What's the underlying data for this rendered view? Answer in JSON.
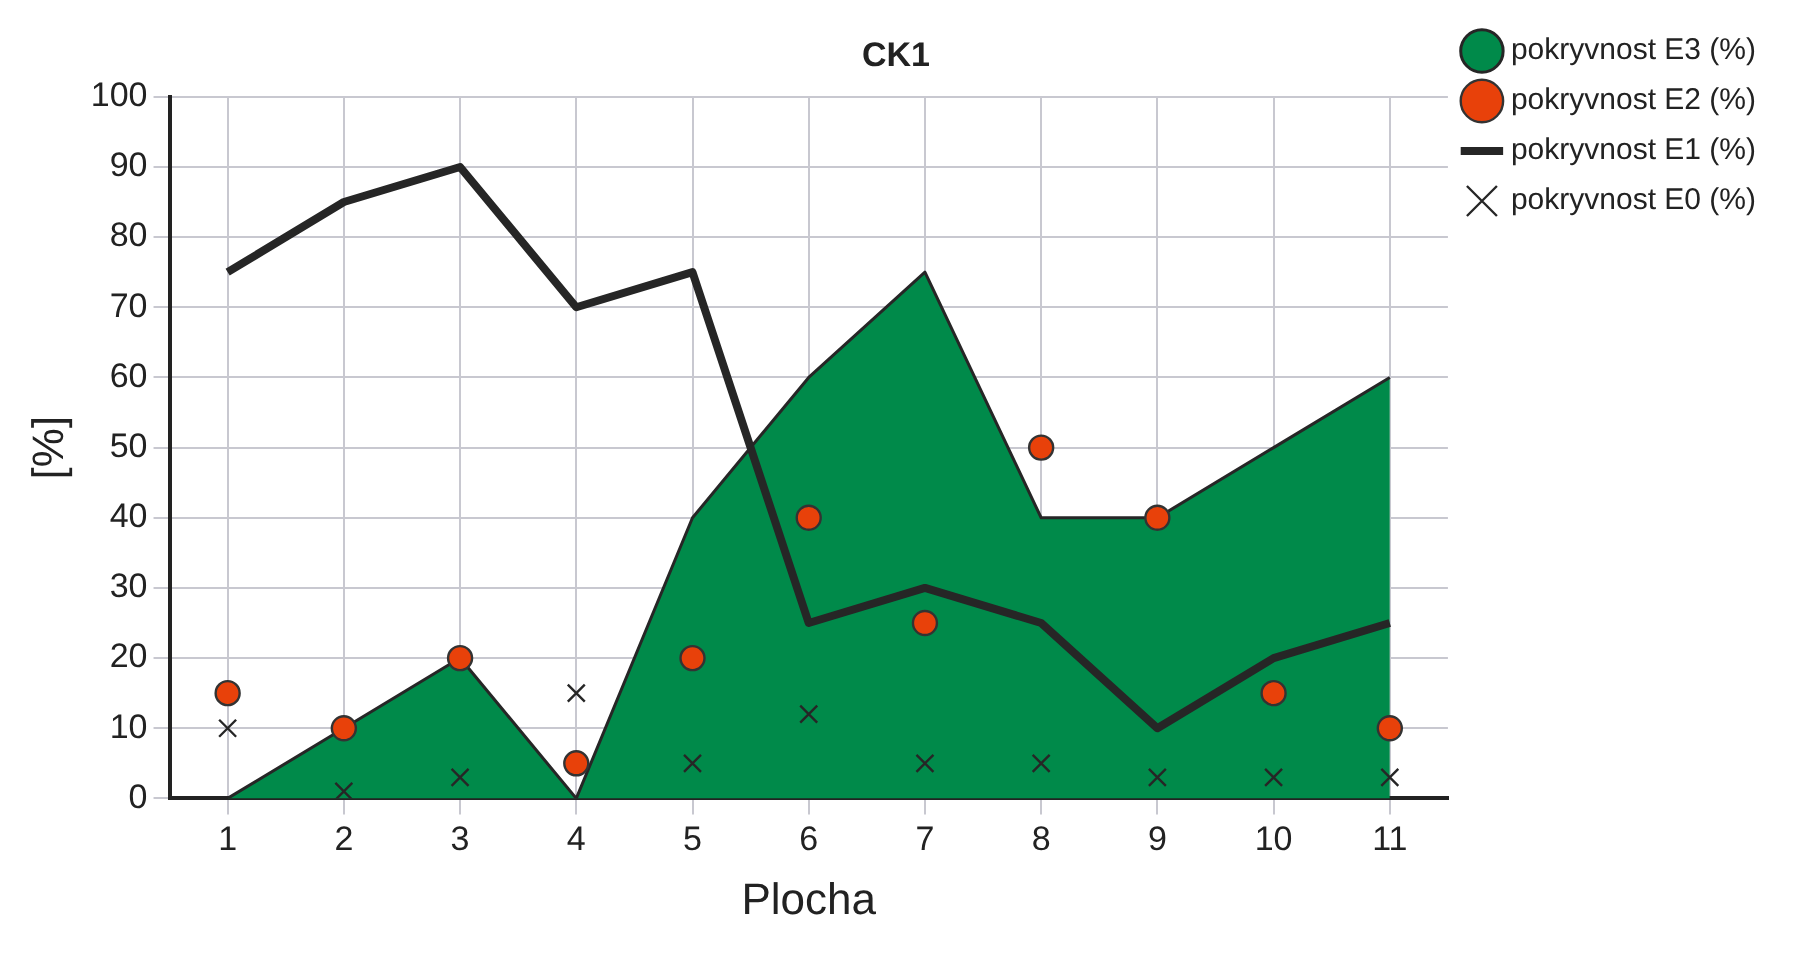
{
  "chart_data": {
    "type": "line",
    "title": "CK1",
    "xlabel": "Plocha",
    "ylabel": "[%]",
    "categories": [
      "1",
      "2",
      "3",
      "4",
      "5",
      "6",
      "7",
      "8",
      "9",
      "10",
      "11"
    ],
    "series": [
      {
        "name": "pokryvnost E3 (%)",
        "type": "area",
        "color": "#008a4a",
        "values": [
          0,
          10,
          20,
          0,
          40,
          60,
          75,
          40,
          40,
          50,
          60
        ]
      },
      {
        "name": "pokryvnost E2 (%)",
        "type": "scatter",
        "marker": "circle",
        "color": "#e8410a",
        "values": [
          15,
          10,
          20,
          5,
          20,
          40,
          25,
          50,
          40,
          15,
          10
        ]
      },
      {
        "name": "pokryvnost E1 (%)",
        "type": "line",
        "color": "#262626",
        "values": [
          75,
          85,
          90,
          70,
          75,
          25,
          30,
          25,
          10,
          20,
          25
        ]
      },
      {
        "name": "pokryvnost E0 (%)",
        "type": "scatter",
        "marker": "cross",
        "color": "#262626",
        "values": [
          10,
          1,
          3,
          15,
          5,
          12,
          5,
          5,
          3,
          3,
          3
        ]
      }
    ],
    "ylim": [
      0,
      100
    ],
    "yticks": [
      0,
      10,
      20,
      30,
      40,
      50,
      60,
      70,
      80,
      90,
      100
    ],
    "grid": true,
    "legend": "right"
  }
}
